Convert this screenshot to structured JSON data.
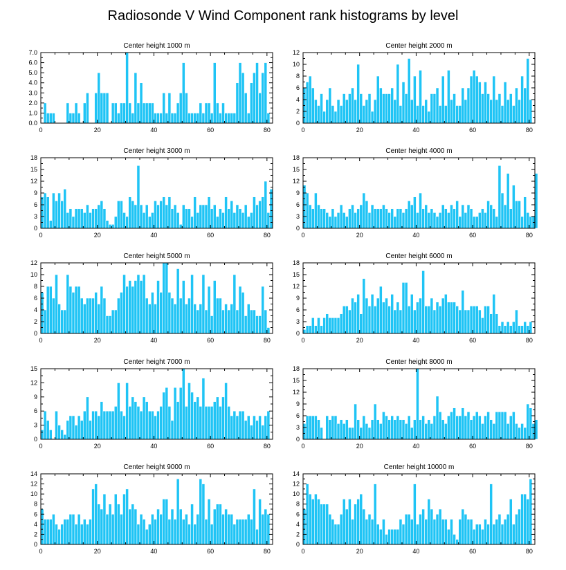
{
  "figure_title": "Radiosonde V Wind Component rank histograms by level",
  "colors": {
    "bar": "#1fc4f5",
    "bar_edge": "#ffffff",
    "axis": "#000000"
  },
  "chart_data": [
    {
      "type": "bar",
      "title": "Center height 1000 m",
      "xlim": [
        0,
        82
      ],
      "ylim": [
        0,
        7
      ],
      "xticks": [
        "0",
        "20",
        "40",
        "60",
        "80"
      ],
      "yticks": [
        "0.0",
        "1.0",
        "2.0",
        "3.0",
        "4.0",
        "5.0",
        "6.0",
        "7.0"
      ],
      "values": [
        0,
        2,
        1,
        1,
        1,
        0,
        0,
        0,
        0,
        2,
        1,
        1,
        2,
        1,
        0,
        2,
        3,
        0,
        0,
        3,
        5,
        3,
        3,
        3,
        0,
        2,
        2,
        1,
        2,
        2,
        7,
        2,
        1,
        5,
        2,
        4,
        2,
        2,
        2,
        2,
        1,
        1,
        1,
        3,
        1,
        3,
        1,
        1,
        2,
        3,
        6,
        3,
        1,
        1,
        1,
        1,
        2,
        1,
        2,
        2,
        1,
        6,
        2,
        1,
        2,
        1,
        1,
        1,
        1,
        4,
        6,
        5,
        3,
        1,
        4,
        5,
        6,
        3,
        5,
        6,
        1
      ],
      "xlabel": "",
      "ylabel": ""
    },
    {
      "type": "bar",
      "title": "Center height 2000 m",
      "xlim": [
        0,
        82
      ],
      "ylim": [
        0,
        12
      ],
      "xticks": [
        "0",
        "20",
        "40",
        "60",
        "80"
      ],
      "yticks": [
        "0",
        "2",
        "4",
        "6",
        "8",
        "10",
        "12"
      ],
      "values": [
        6,
        7,
        8,
        6,
        4,
        3,
        5,
        2,
        4,
        6,
        3,
        2,
        4,
        3,
        5,
        4,
        5,
        6,
        4,
        10,
        5,
        3,
        4,
        5,
        2,
        4,
        8,
        6,
        5,
        5,
        5,
        6,
        4,
        10,
        3,
        7,
        5,
        11,
        4,
        8,
        3,
        9,
        3,
        4,
        2,
        5,
        5,
        6,
        3,
        8,
        3,
        9,
        4,
        5,
        3,
        3,
        6,
        4,
        6,
        8,
        9,
        8,
        7,
        5,
        7,
        5,
        4,
        8,
        4,
        5,
        3,
        7,
        4,
        5,
        3,
        6,
        4,
        8,
        6,
        11,
        4
      ],
      "xlabel": "",
      "ylabel": ""
    },
    {
      "type": "bar",
      "title": "Center height 3000 m",
      "xlim": [
        0,
        82
      ],
      "ylim": [
        0,
        18
      ],
      "xticks": [
        "0",
        "20",
        "40",
        "60",
        "80"
      ],
      "yticks": [
        "0",
        "3",
        "6",
        "9",
        "12",
        "15",
        "18"
      ],
      "values": [
        8,
        9,
        8,
        2,
        9,
        7,
        9,
        7,
        10,
        4,
        5,
        3,
        5,
        5,
        5,
        4,
        6,
        4,
        5,
        5,
        6,
        7,
        5,
        2,
        1,
        1,
        3,
        7,
        7,
        4,
        3,
        8,
        7,
        6,
        16,
        6,
        4,
        6,
        3,
        4,
        7,
        6,
        7,
        8,
        6,
        8,
        5,
        6,
        4,
        1,
        6,
        5,
        5,
        3,
        8,
        4,
        6,
        6,
        6,
        8,
        5,
        6,
        3,
        5,
        4,
        8,
        5,
        7,
        4,
        6,
        5,
        4,
        6,
        3,
        4,
        8,
        6,
        7,
        8,
        12,
        4,
        10
      ],
      "xlabel": "",
      "ylabel": ""
    },
    {
      "type": "bar",
      "title": "Center height 4000 m",
      "xlim": [
        0,
        82
      ],
      "ylim": [
        0,
        18
      ],
      "xticks": [
        "0",
        "20",
        "40",
        "60",
        "80"
      ],
      "yticks": [
        "0",
        "3",
        "6",
        "9",
        "12",
        "15",
        "18"
      ],
      "values": [
        11,
        9,
        6,
        5,
        9,
        6,
        5,
        5,
        4,
        3,
        5,
        3,
        4,
        6,
        4,
        3,
        5,
        6,
        4,
        5,
        6,
        9,
        7,
        4,
        6,
        5,
        5,
        5,
        6,
        5,
        4,
        5,
        3,
        5,
        5,
        4,
        5,
        7,
        6,
        8,
        4,
        9,
        5,
        6,
        4,
        5,
        4,
        3,
        4,
        6,
        5,
        4,
        6,
        5,
        7,
        3,
        6,
        4,
        6,
        5,
        3,
        3,
        4,
        5,
        4,
        7,
        6,
        5,
        3,
        16,
        9,
        6,
        14,
        5,
        11,
        7,
        7,
        3,
        8,
        4,
        3,
        3,
        14
      ],
      "xlabel": "",
      "ylabel": ""
    },
    {
      "type": "bar",
      "title": "Center height 5000 m",
      "xlim": [
        0,
        82
      ],
      "ylim": [
        0,
        12
      ],
      "xticks": [
        "0",
        "20",
        "40",
        "60",
        "80"
      ],
      "yticks": [
        "0",
        "2",
        "4",
        "6",
        "8",
        "10",
        "12"
      ],
      "values": [
        7,
        4,
        8,
        8,
        6,
        10,
        5,
        4,
        4,
        10,
        8,
        7,
        8,
        8,
        6,
        5,
        6,
        6,
        6,
        7,
        5,
        8,
        6,
        3,
        3,
        4,
        4,
        6,
        7,
        10,
        8,
        9,
        8,
        9,
        10,
        9,
        10,
        6,
        5,
        7,
        5,
        9,
        7,
        12,
        12,
        7,
        6,
        5,
        11,
        6,
        9,
        5,
        6,
        10,
        5,
        4,
        5,
        10,
        4,
        8,
        3,
        9,
        6,
        6,
        4,
        5,
        4,
        5,
        10,
        4,
        8,
        7,
        3,
        5,
        4,
        4,
        3,
        3,
        8,
        4,
        1
      ],
      "xlabel": "",
      "ylabel": ""
    },
    {
      "type": "bar",
      "title": "Center height 6000 m",
      "xlim": [
        0,
        82
      ],
      "ylim": [
        0,
        18
      ],
      "xticks": [
        "0",
        "20",
        "40",
        "60",
        "80"
      ],
      "yticks": [
        "0",
        "3",
        "6",
        "9",
        "12",
        "15",
        "18"
      ],
      "values": [
        1,
        2,
        2,
        4,
        2,
        4,
        2,
        4,
        5,
        4,
        4,
        4,
        4,
        5,
        7,
        7,
        6,
        9,
        8,
        10,
        5,
        14,
        9,
        7,
        10,
        7,
        9,
        12,
        8,
        9,
        7,
        10,
        6,
        8,
        6,
        13,
        13,
        7,
        10,
        6,
        8,
        9,
        16,
        7,
        7,
        9,
        6,
        8,
        7,
        9,
        10,
        8,
        8,
        8,
        7,
        6,
        11,
        6,
        6,
        7,
        7,
        7,
        6,
        4,
        7,
        7,
        5,
        10,
        5,
        2,
        3,
        2,
        3,
        2,
        3,
        6,
        2,
        2,
        3,
        2,
        3
      ],
      "xlabel": "",
      "ylabel": ""
    },
    {
      "type": "bar",
      "title": "Center height 7000 m",
      "xlim": [
        0,
        82
      ],
      "ylim": [
        0,
        15
      ],
      "xticks": [
        "0",
        "20",
        "40",
        "60",
        "80"
      ],
      "yticks": [
        "0",
        "3",
        "6",
        "9",
        "12",
        "15"
      ],
      "values": [
        2,
        6,
        4,
        2,
        0,
        6,
        3,
        2,
        1,
        4,
        5,
        5,
        3,
        5,
        4,
        6,
        9,
        4,
        6,
        6,
        5,
        8,
        6,
        6,
        6,
        6,
        7,
        12,
        6,
        5,
        12,
        7,
        9,
        8,
        7,
        6,
        9,
        8,
        6,
        6,
        5,
        6,
        7,
        10,
        11,
        7,
        4,
        11,
        8,
        11,
        15,
        7,
        12,
        10,
        8,
        9,
        7,
        13,
        7,
        7,
        7,
        8,
        9,
        7,
        9,
        12,
        7,
        5,
        6,
        5,
        6,
        6,
        4,
        5,
        3,
        5,
        4,
        5,
        3,
        5,
        6
      ],
      "xlabel": "",
      "ylabel": ""
    },
    {
      "type": "bar",
      "title": "Center height 8000 m",
      "xlim": [
        0,
        82
      ],
      "ylim": [
        0,
        18
      ],
      "xticks": [
        "0",
        "20",
        "40",
        "60",
        "80"
      ],
      "yticks": [
        "0",
        "3",
        "6",
        "9",
        "12",
        "15",
        "18"
      ],
      "values": [
        4,
        6,
        6,
        6,
        6,
        5,
        3,
        0,
        6,
        5,
        6,
        6,
        4,
        5,
        4,
        5,
        3,
        3,
        9,
        5,
        3,
        6,
        4,
        3,
        5,
        9,
        5,
        4,
        7,
        6,
        5,
        6,
        5,
        6,
        5,
        5,
        4,
        6,
        3,
        5,
        18,
        5,
        6,
        4,
        5,
        4,
        6,
        11,
        7,
        5,
        4,
        6,
        7,
        8,
        6,
        6,
        8,
        6,
        7,
        5,
        6,
        7,
        6,
        4,
        6,
        7,
        5,
        4,
        7,
        7,
        7,
        7,
        4,
        6,
        7,
        4,
        3,
        4,
        3,
        9,
        8,
        4,
        5
      ],
      "xlabel": "",
      "ylabel": ""
    },
    {
      "type": "bar",
      "title": "Center height 9000 m",
      "xlim": [
        0,
        82
      ],
      "ylim": [
        0,
        14
      ],
      "xticks": [
        "0",
        "20",
        "40",
        "60",
        "80"
      ],
      "yticks": [
        "0",
        "2",
        "4",
        "6",
        "8",
        "10",
        "12",
        "14"
      ],
      "values": [
        7,
        5,
        5,
        5,
        6,
        4,
        3,
        4,
        5,
        5,
        6,
        6,
        4,
        6,
        4,
        5,
        4,
        5,
        11,
        12,
        8,
        7,
        10,
        6,
        8,
        6,
        10,
        8,
        6,
        10,
        11,
        7,
        8,
        7,
        4,
        6,
        5,
        3,
        4,
        6,
        5,
        7,
        6,
        9,
        9,
        5,
        7,
        5,
        13,
        7,
        5,
        6,
        4,
        8,
        4,
        6,
        13,
        12,
        5,
        9,
        4,
        7,
        8,
        8,
        6,
        7,
        6,
        6,
        4,
        5,
        5,
        5,
        5,
        6,
        5,
        11,
        3,
        9,
        6,
        7,
        6
      ],
      "xlabel": "",
      "ylabel": ""
    },
    {
      "type": "bar",
      "title": "Center height 10000 m",
      "xlim": [
        0,
        82
      ],
      "ylim": [
        0,
        14
      ],
      "xticks": [
        "0",
        "20",
        "40",
        "60",
        "80"
      ],
      "yticks": [
        "0",
        "2",
        "4",
        "6",
        "8",
        "10",
        "12",
        "14"
      ],
      "values": [
        7,
        12,
        10,
        9,
        10,
        9,
        8,
        8,
        8,
        6,
        5,
        4,
        4,
        6,
        9,
        7,
        9,
        5,
        8,
        9,
        10,
        7,
        5,
        6,
        5,
        12,
        4,
        3,
        5,
        2,
        3,
        3,
        3,
        3,
        5,
        4,
        6,
        6,
        5,
        12,
        4,
        6,
        7,
        5,
        9,
        7,
        5,
        6,
        7,
        5,
        5,
        3,
        5,
        2,
        1,
        5,
        7,
        6,
        5,
        5,
        3,
        4,
        4,
        3,
        5,
        4,
        12,
        4,
        5,
        6,
        4,
        5,
        6,
        9,
        4,
        6,
        7,
        10,
        10,
        9,
        13
      ],
      "xlabel": "",
      "ylabel": ""
    }
  ]
}
